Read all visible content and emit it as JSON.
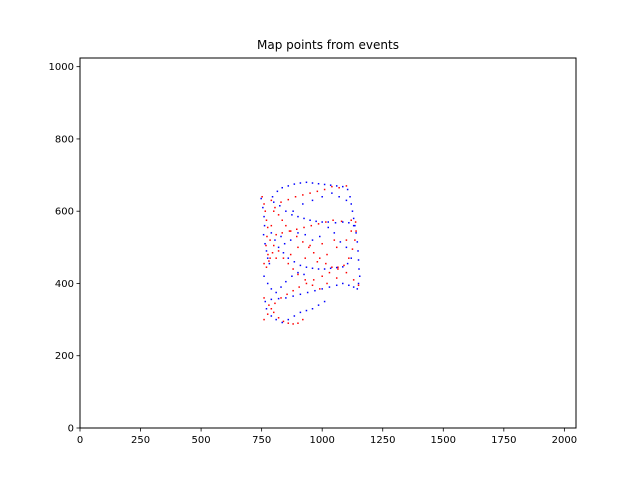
{
  "chart_data": {
    "type": "scatter",
    "title": "Map points from events",
    "xlabel": "",
    "ylabel": "",
    "xlim": [
      0,
      2048
    ],
    "ylim": [
      0,
      1024
    ],
    "xticks": [
      0,
      250,
      500,
      750,
      1000,
      1250,
      1500,
      1750,
      2000
    ],
    "yticks": [
      0,
      200,
      400,
      600,
      800,
      1000
    ],
    "grid": false,
    "colors": {
      "positive": "#ff0000",
      "negative": "#0000ff",
      "axes": "#000000",
      "background": "#ffffff"
    },
    "series": [
      {
        "polarity": "positive",
        "color": "#ff0000",
        "points": [
          [
            752,
            640
          ],
          [
            760,
            620
          ],
          [
            765,
            600
          ],
          [
            770,
            575
          ],
          [
            775,
            555
          ],
          [
            772,
            530
          ],
          [
            768,
            505
          ],
          [
            776,
            480
          ],
          [
            780,
            462
          ],
          [
            790,
            630
          ],
          [
            805,
            610
          ],
          [
            820,
            590
          ],
          [
            835,
            575
          ],
          [
            850,
            560
          ],
          [
            870,
            545
          ],
          [
            895,
            530
          ],
          [
            920,
            515
          ],
          [
            945,
            500
          ],
          [
            965,
            485
          ],
          [
            990,
            470
          ],
          [
            1015,
            455
          ],
          [
            1040,
            445
          ],
          [
            1065,
            440
          ],
          [
            1090,
            450
          ],
          [
            1110,
            470
          ],
          [
            1125,
            495
          ],
          [
            1135,
            520
          ],
          [
            1140,
            545
          ],
          [
            1138,
            570
          ],
          [
            1100,
            670
          ],
          [
            1070,
            665
          ],
          [
            1040,
            668
          ],
          [
            1010,
            660
          ],
          [
            980,
            655
          ],
          [
            950,
            650
          ],
          [
            920,
            645
          ],
          [
            890,
            640
          ],
          [
            860,
            632
          ],
          [
            830,
            625
          ],
          [
            800,
            600
          ],
          [
            790,
            560
          ],
          [
            785,
            520
          ],
          [
            800,
            505
          ],
          [
            820,
            490
          ],
          [
            840,
            470
          ],
          [
            860,
            455
          ],
          [
            880,
            440
          ],
          [
            900,
            425
          ],
          [
            930,
            410
          ],
          [
            960,
            395
          ],
          [
            990,
            385
          ],
          [
            1020,
            400
          ],
          [
            1060,
            415
          ],
          [
            1100,
            430
          ],
          [
            1130,
            410
          ],
          [
            1150,
            395
          ],
          [
            760,
            360
          ],
          [
            780,
            340
          ],
          [
            800,
            320
          ],
          [
            820,
            305
          ],
          [
            840,
            295
          ],
          [
            860,
            290
          ],
          [
            880,
            288
          ],
          [
            900,
            290
          ],
          [
            920,
            300
          ],
          [
            760,
            300
          ],
          [
            775,
            315
          ],
          [
            790,
            330
          ],
          [
            805,
            345
          ],
          [
            830,
            360
          ],
          [
            855,
            370
          ],
          [
            880,
            380
          ],
          [
            905,
            390
          ],
          [
            935,
            400
          ],
          [
            965,
            410
          ],
          [
            1000,
            420
          ],
          [
            1030,
            430
          ],
          [
            1065,
            445
          ],
          [
            1045,
            575
          ],
          [
            1015,
            570
          ],
          [
            985,
            565
          ],
          [
            955,
            560
          ],
          [
            925,
            555
          ],
          [
            895,
            550
          ],
          [
            865,
            545
          ],
          [
            835,
            540
          ],
          [
            810,
            535
          ],
          [
            1120,
            575
          ],
          [
            1080,
            572
          ],
          [
            1050,
            520
          ],
          [
            1000,
            510
          ],
          [
            950,
            505
          ],
          [
            900,
            500
          ],
          [
            870,
            480
          ],
          [
            930,
            470
          ],
          [
            980,
            460
          ],
          [
            1020,
            480
          ],
          [
            1060,
            500
          ],
          [
            1100,
            520
          ],
          [
            1120,
            545
          ],
          [
            760,
            455
          ],
          [
            770,
            445
          ],
          [
            785,
            470
          ],
          [
            795,
            485
          ],
          [
            810,
            470
          ]
        ]
      },
      {
        "polarity": "negative",
        "color": "#0000ff",
        "points": [
          [
            748,
            635
          ],
          [
            755,
            610
          ],
          [
            760,
            585
          ],
          [
            762,
            560
          ],
          [
            758,
            535
          ],
          [
            764,
            510
          ],
          [
            770,
            490
          ],
          [
            775,
            470
          ],
          [
            782,
            455
          ],
          [
            795,
            640
          ],
          [
            815,
            655
          ],
          [
            835,
            665
          ],
          [
            860,
            670
          ],
          [
            885,
            675
          ],
          [
            910,
            678
          ],
          [
            935,
            680
          ],
          [
            960,
            678
          ],
          [
            985,
            676
          ],
          [
            1010,
            674
          ],
          [
            1035,
            672
          ],
          [
            1060,
            670
          ],
          [
            1085,
            668
          ],
          [
            1105,
            660
          ],
          [
            1115,
            640
          ],
          [
            1120,
            620
          ],
          [
            1125,
            600
          ],
          [
            1130,
            580
          ],
          [
            1135,
            560
          ],
          [
            1140,
            540
          ],
          [
            1145,
            515
          ],
          [
            1148,
            490
          ],
          [
            1150,
            465
          ],
          [
            1152,
            440
          ],
          [
            1155,
            420
          ],
          [
            1150,
            400
          ],
          [
            1145,
            385
          ],
          [
            1130,
            390
          ],
          [
            1110,
            395
          ],
          [
            1085,
            400
          ],
          [
            1060,
            395
          ],
          [
            1030,
            390
          ],
          [
            1000,
            385
          ],
          [
            970,
            380
          ],
          [
            940,
            375
          ],
          [
            910,
            370
          ],
          [
            880,
            365
          ],
          [
            850,
            360
          ],
          [
            820,
            358
          ],
          [
            790,
            356
          ],
          [
            765,
            350
          ],
          [
            800,
            625
          ],
          [
            825,
            615
          ],
          [
            850,
            600
          ],
          [
            875,
            590
          ],
          [
            900,
            585
          ],
          [
            925,
            580
          ],
          [
            950,
            575
          ],
          [
            975,
            572
          ],
          [
            1000,
            570
          ],
          [
            1025,
            570
          ],
          [
            1055,
            568
          ],
          [
            1085,
            570
          ],
          [
            1110,
            568
          ],
          [
            1130,
            560
          ],
          [
            790,
            540
          ],
          [
            805,
            520
          ],
          [
            820,
            500
          ],
          [
            840,
            485
          ],
          [
            860,
            470
          ],
          [
            885,
            460
          ],
          [
            910,
            450
          ],
          [
            935,
            445
          ],
          [
            960,
            442
          ],
          [
            985,
            440
          ],
          [
            1010,
            440
          ],
          [
            1035,
            442
          ],
          [
            1060,
            444
          ],
          [
            1085,
            446
          ],
          [
            1105,
            455
          ],
          [
            1120,
            470
          ],
          [
            1100,
            500
          ],
          [
            1075,
            515
          ],
          [
            1050,
            540
          ],
          [
            1025,
            555
          ],
          [
            990,
            530
          ],
          [
            960,
            520
          ],
          [
            930,
            535
          ],
          [
            900,
            540
          ],
          [
            870,
            520
          ],
          [
            845,
            510
          ],
          [
            830,
            530
          ],
          [
            880,
            600
          ],
          [
            920,
            620
          ],
          [
            960,
            630
          ],
          [
            1000,
            640
          ],
          [
            1040,
            650
          ],
          [
            1070,
            640
          ],
          [
            1100,
            630
          ],
          [
            770,
            330
          ],
          [
            790,
            310
          ],
          [
            810,
            300
          ],
          [
            835,
            292
          ],
          [
            860,
            300
          ],
          [
            885,
            310
          ],
          [
            910,
            320
          ],
          [
            935,
            325
          ],
          [
            960,
            330
          ],
          [
            985,
            340
          ],
          [
            1010,
            350
          ],
          [
            760,
            420
          ],
          [
            775,
            400
          ],
          [
            790,
            385
          ],
          [
            810,
            375
          ],
          [
            830,
            390
          ],
          [
            850,
            405
          ],
          [
            875,
            420
          ],
          [
            900,
            430
          ],
          [
            925,
            425
          ]
        ]
      }
    ]
  }
}
